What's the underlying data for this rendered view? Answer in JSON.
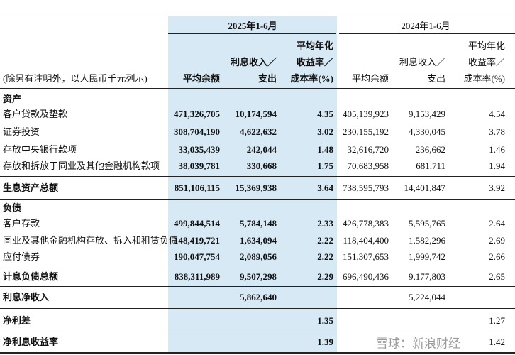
{
  "header": {
    "note": "(除另有注明外，以人民币千元列示)",
    "periods": [
      {
        "label": "2025年1-6月",
        "columns": [
          [
            "平均余额"
          ],
          [
            "利息收入／",
            "支出"
          ],
          [
            "平均年化",
            "收益率／",
            "成本率(%)"
          ]
        ]
      },
      {
        "label": "2024年1-6月",
        "columns": [
          [
            "平均余额"
          ],
          [
            "利息收入／",
            "支出"
          ],
          [
            "平均年化",
            "收益率／",
            "成本率(%)"
          ]
        ]
      }
    ]
  },
  "rows": [
    {
      "label": "资产",
      "bold": true
    },
    {
      "label": "客户贷款及垫款",
      "cells": [
        "471,326,705",
        "10,174,594",
        "4.35",
        "405,139,923",
        "9,153,429",
        "4.54"
      ]
    },
    {
      "label": "证券投资",
      "cells": [
        "308,704,190",
        "4,622,632",
        "3.02",
        "230,155,192",
        "4,330,045",
        "3.78"
      ]
    },
    {
      "label": "存放中央银行款项",
      "cells": [
        "33,035,439",
        "242,044",
        "1.48",
        "32,616,720",
        "236,662",
        "1.46"
      ]
    },
    {
      "label": "存放和拆放于同业及其他金融机构款项",
      "cells": [
        "38,039,781",
        "330,668",
        "1.75",
        "70,683,958",
        "681,711",
        "1.94"
      ]
    },
    {
      "label": "生息资产总额",
      "bold": true,
      "cells": [
        "851,106,115",
        "15,369,938",
        "3.64",
        "738,595,793",
        "14,401,847",
        "3.92"
      ]
    },
    {
      "label": "负债",
      "bold": true
    },
    {
      "label": "客户存款",
      "cells": [
        "499,844,514",
        "5,784,148",
        "2.33",
        "426,778,383",
        "5,595,765",
        "2.64"
      ]
    },
    {
      "label": "同业及其他金融机构存放、拆入和租赁负债",
      "cells": [
        "148,419,721",
        "1,634,094",
        "2.22",
        "118,404,400",
        "1,582,296",
        "2.69"
      ]
    },
    {
      "label": "应付债券",
      "cells": [
        "190,047,754",
        "2,089,056",
        "2.22",
        "151,307,653",
        "1,999,742",
        "2.66"
      ]
    },
    {
      "label": "计息负债总额",
      "bold": true,
      "cells": [
        "838,311,989",
        "9,507,298",
        "2.29",
        "696,490,436",
        "9,177,803",
        "2.65"
      ]
    },
    {
      "label": "利息净收入",
      "bold": true,
      "cells": [
        null,
        "5,862,640",
        null,
        null,
        "5,224,044",
        null
      ]
    },
    {
      "label": "净利差",
      "bold": true,
      "cells": [
        null,
        null,
        "1.35",
        null,
        null,
        "1.27"
      ]
    },
    {
      "label": "净利息收益率",
      "bold": true,
      "cells": [
        null,
        null,
        "1.39",
        null,
        null,
        "1.42"
      ]
    }
  ],
  "watermark": "雪球：新浪财经"
}
